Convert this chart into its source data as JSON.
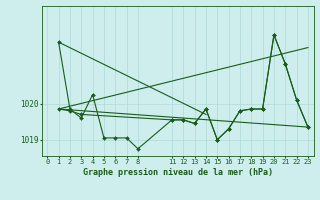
{
  "background_color": "#cdeeed",
  "grid_color": "#b0d8d8",
  "line_color": "#1a5c1a",
  "title": "Graphe pression niveau de la mer (hPa)",
  "yticks": [
    1019,
    1020
  ],
  "xlim": [
    -0.5,
    23.5
  ],
  "ylim": [
    1018.55,
    1022.7
  ],
  "series": [
    {
      "x": [
        1,
        2,
        3,
        4,
        5,
        6,
        7,
        8,
        11,
        12,
        13,
        14,
        15,
        16,
        17,
        18,
        19,
        20,
        21,
        22,
        23
      ],
      "y": [
        1021.7,
        1019.85,
        1019.6,
        1020.25,
        1019.05,
        1019.05,
        1019.05,
        1018.75,
        1019.55,
        1019.55,
        1019.45,
        1019.85,
        1019.0,
        1019.3,
        1019.8,
        1019.85,
        1019.85,
        1021.9,
        1021.1,
        1020.1,
        1019.35
      ]
    },
    {
      "x": [
        1,
        23
      ],
      "y": [
        1019.85,
        1021.55
      ]
    },
    {
      "x": [
        1,
        23
      ],
      "y": [
        1019.85,
        1019.35
      ]
    },
    {
      "x": [
        1,
        14
      ],
      "y": [
        1021.7,
        1019.7
      ]
    },
    {
      "x": [
        1,
        2,
        3,
        11,
        12,
        13,
        14,
        15,
        16,
        17,
        18,
        19,
        20,
        21,
        22,
        23
      ],
      "y": [
        1019.85,
        1019.8,
        1019.7,
        1019.55,
        1019.55,
        1019.45,
        1019.85,
        1019.0,
        1019.3,
        1019.8,
        1019.85,
        1019.85,
        1021.9,
        1021.1,
        1020.1,
        1019.35
      ]
    }
  ],
  "xticks_a": [
    0,
    1,
    2,
    3,
    4,
    5,
    6,
    7,
    8
  ],
  "xticks_b": [
    11,
    12,
    13,
    14,
    15,
    16,
    17,
    18,
    19,
    20,
    21,
    22,
    23
  ],
  "ytick_fontsize": 5.5,
  "xtick_fontsize": 5.0,
  "title_fontsize": 6.0
}
